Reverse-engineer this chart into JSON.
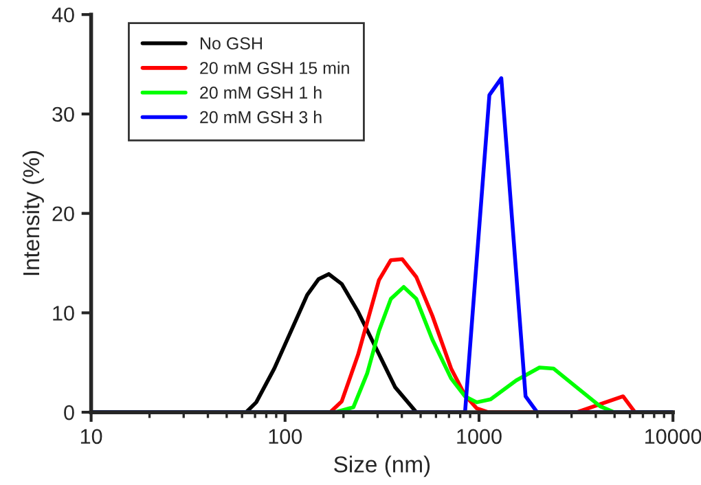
{
  "chart_data": {
    "type": "line",
    "xlabel": "Size (nm)",
    "ylabel": "Intensity (%)",
    "log": "x",
    "xlim": [
      10,
      10000
    ],
    "xticks": [
      10,
      100,
      1000,
      10000
    ],
    "ylim": [
      0,
      40
    ],
    "yticks": [
      0,
      10,
      20,
      30,
      40
    ],
    "grid": false,
    "legend": "top left",
    "marker": "none",
    "line_style": "solid",
    "series": [
      {
        "name": "No GSH",
        "color": "#000000",
        "x": [
          10,
          63,
          71,
          88,
          130,
          149,
          168,
          196,
          238,
          297,
          370,
          475
        ],
        "values": [
          0,
          0,
          1.0,
          4.4,
          11.8,
          13.4,
          13.9,
          12.9,
          10.1,
          6.3,
          2.5,
          0
        ]
      },
      {
        "name": "20 mM GSH 15 min",
        "color": "#ff0000",
        "x": [
          10,
          171,
          196,
          238,
          305,
          351,
          402,
          475,
          575,
          718,
          847,
          973,
          1117,
          3190,
          5530,
          6370,
          10000
        ],
        "values": [
          0,
          0,
          1.1,
          5.8,
          13.3,
          15.3,
          15.4,
          13.6,
          9.7,
          4.4,
          1.7,
          0.4,
          0,
          0,
          1.6,
          0,
          0
        ]
      },
      {
        "name": "20 mM GSH 1 h",
        "color": "#00ff00",
        "x": [
          10,
          181,
          225,
          265,
          305,
          351,
          409,
          475,
          575,
          718,
          847,
          973,
          1148,
          1556,
          2050,
          2420,
          3190,
          4210,
          4970,
          10000
        ],
        "values": [
          0,
          0,
          0.5,
          3.9,
          8.2,
          11.4,
          12.6,
          11.4,
          7.3,
          3.4,
          1.6,
          1.0,
          1.3,
          3.2,
          4.5,
          4.4,
          2.5,
          0.6,
          0,
          0
        ]
      },
      {
        "name": "20 mM GSH 3 h",
        "color": "#0000ff",
        "x": [
          10,
          847,
          1131,
          1303,
          1738,
          1995,
          10000
        ],
        "values": [
          0,
          0,
          31.9,
          33.6,
          1.6,
          0,
          0
        ]
      }
    ]
  }
}
